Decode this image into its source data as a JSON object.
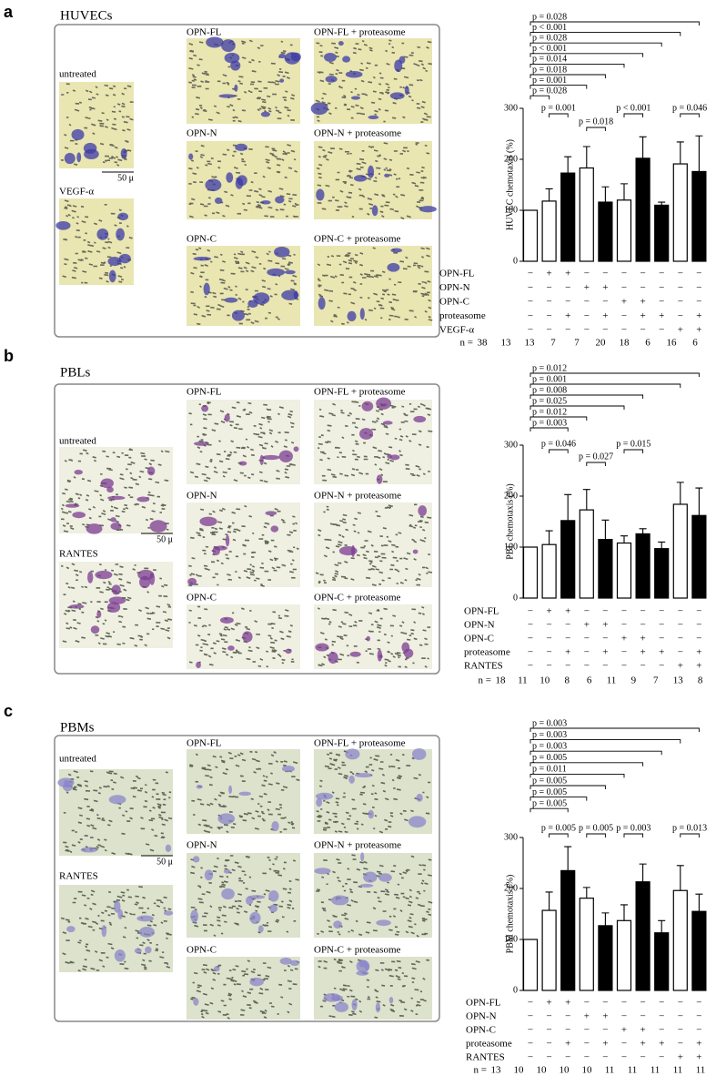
{
  "panels": [
    {
      "letter": "a",
      "title": "HUVECs",
      "scale_bar": "50 μ",
      "image_labels": [
        "untreated",
        "VEGF-α",
        "OPN-FL",
        "OPN-N",
        "OPN-C",
        "OPN-FL + proteasome",
        "OPN-N + proteasome",
        "OPN-C + proteasome"
      ]
    },
    {
      "letter": "b",
      "title": "PBLs",
      "scale_bar": "50 μ",
      "image_labels": [
        "untreated",
        "RANTES",
        "OPN-FL",
        "OPN-N",
        "OPN-C",
        "OPN-FL + proteasome",
        "OPN-N + proteasome",
        "OPN-C + proteasome"
      ]
    },
    {
      "letter": "c",
      "title": "PBMs",
      "scale_bar": "50 μ",
      "image_labels": [
        "untreated",
        "RANTES",
        "OPN-FL",
        "OPN-N",
        "OPN-C",
        "OPN-FL + proteasome",
        "OPN-N + proteasome",
        "OPN-C + proteasome"
      ]
    }
  ],
  "chart_data": [
    {
      "type": "bar",
      "ylabel": "HUVEC chemotaxis (%)",
      "ylim": [
        0,
        300
      ],
      "yticks": [
        0,
        100,
        200,
        300
      ],
      "values": [
        100,
        118,
        173,
        183,
        116,
        120,
        202,
        110,
        191,
        176
      ],
      "errors": [
        null,
        24,
        32,
        42,
        30,
        32,
        42,
        6,
        43,
        70
      ],
      "colors": [
        "#ffffff",
        "#ffffff",
        "#000000",
        "#ffffff",
        "#000000",
        "#ffffff",
        "#000000",
        "#000000",
        "#ffffff",
        "#000000"
      ],
      "brackets": [
        {
          "from": 0,
          "to": 9,
          "label": "p = 0.028"
        },
        {
          "from": 0,
          "to": 8,
          "label": "p < 0.001"
        },
        {
          "from": 0,
          "to": 7,
          "label": "p = 0.028"
        },
        {
          "from": 0,
          "to": 6,
          "label": "p < 0.001"
        },
        {
          "from": 0,
          "to": 5,
          "label": "p = 0.014"
        },
        {
          "from": 0,
          "to": 4,
          "label": "p = 0.018"
        },
        {
          "from": 0,
          "to": 3,
          "label": "p = 0.001"
        },
        {
          "from": 0,
          "to": 1,
          "label": "p = 0.028"
        }
      ],
      "pair_brackets": [
        {
          "from": 1,
          "to": 2,
          "label": "p = 0.001"
        },
        {
          "from": 3,
          "to": 4,
          "label": "p = 0.018"
        },
        {
          "from": 5,
          "to": 6,
          "label": "p < 0.001"
        },
        {
          "from": 8,
          "to": 9,
          "label": "p = 0.046"
        }
      ],
      "conditions": [
        {
          "name": "OPN-FL",
          "marks": [
            "−",
            "+",
            "+",
            "−",
            "−",
            "−",
            "−",
            "−",
            "−",
            "−"
          ]
        },
        {
          "name": "OPN-N",
          "marks": [
            "−",
            "−",
            "−",
            "+",
            "+",
            "−",
            "−",
            "−",
            "−",
            "−"
          ]
        },
        {
          "name": "OPN-C",
          "marks": [
            "−",
            "−",
            "−",
            "−",
            "−",
            "+",
            "+",
            "−",
            "−",
            "−"
          ]
        },
        {
          "name": "proteasome",
          "marks": [
            "−",
            "−",
            "+",
            "−",
            "+",
            "−",
            "+",
            "+",
            "−",
            "+"
          ]
        },
        {
          "name": "VEGF-α",
          "marks": [
            "−",
            "−",
            "−",
            "−",
            "−",
            "−",
            "−",
            "−",
            "+",
            "+"
          ]
        }
      ],
      "n_label": "n =",
      "n": [
        38,
        13,
        13,
        7,
        7,
        20,
        18,
        6,
        16,
        6
      ]
    },
    {
      "type": "bar",
      "ylabel": "PBL chemotaxis (%)",
      "ylim": [
        0,
        300
      ],
      "yticks": [
        0,
        100,
        200,
        300
      ],
      "values": [
        100,
        105,
        152,
        173,
        115,
        108,
        126,
        97,
        184,
        162
      ],
      "errors": [
        null,
        27,
        51,
        40,
        38,
        14,
        10,
        13,
        43,
        54
      ],
      "colors": [
        "#ffffff",
        "#ffffff",
        "#000000",
        "#ffffff",
        "#000000",
        "#ffffff",
        "#000000",
        "#000000",
        "#ffffff",
        "#000000"
      ],
      "brackets": [
        {
          "from": 0,
          "to": 9,
          "label": "p = 0.012"
        },
        {
          "from": 0,
          "to": 8,
          "label": "p = 0.001"
        },
        {
          "from": 0,
          "to": 6,
          "label": "p = 0.008"
        },
        {
          "from": 0,
          "to": 5,
          "label": "p = 0.025"
        },
        {
          "from": 0,
          "to": 3,
          "label": "p = 0.012"
        },
        {
          "from": 0,
          "to": 2,
          "label": "p = 0.003"
        }
      ],
      "pair_brackets": [
        {
          "from": 1,
          "to": 2,
          "label": "p = 0.046"
        },
        {
          "from": 3,
          "to": 4,
          "label": "p = 0.027"
        },
        {
          "from": 5,
          "to": 6,
          "label": "p = 0.015"
        }
      ],
      "conditions": [
        {
          "name": "OPN-FL",
          "marks": [
            "−",
            "+",
            "+",
            "−",
            "−",
            "−",
            "−",
            "−",
            "−",
            "−"
          ]
        },
        {
          "name": "OPN-N",
          "marks": [
            "−",
            "−",
            "−",
            "+",
            "+",
            "−",
            "−",
            "−",
            "−",
            "−"
          ]
        },
        {
          "name": "OPN-C",
          "marks": [
            "−",
            "−",
            "−",
            "−",
            "−",
            "+",
            "+",
            "−",
            "−",
            "−"
          ]
        },
        {
          "name": "proteasome",
          "marks": [
            "−",
            "−",
            "+",
            "−",
            "+",
            "−",
            "+",
            "+",
            "−",
            "+"
          ]
        },
        {
          "name": "RANTES",
          "marks": [
            "−",
            "−",
            "−",
            "−",
            "−",
            "−",
            "−",
            "−",
            "+",
            "+"
          ]
        }
      ],
      "n_label": "n =",
      "n": [
        18,
        11,
        10,
        8,
        6,
        11,
        9,
        7,
        13,
        8
      ]
    },
    {
      "type": "bar",
      "ylabel": "PBM chemotaxis (%)",
      "ylim": [
        0,
        300
      ],
      "yticks": [
        0,
        100,
        200,
        300
      ],
      "values": [
        100,
        157,
        235,
        181,
        127,
        137,
        213,
        113,
        196,
        155
      ],
      "errors": [
        null,
        36,
        47,
        21,
        25,
        31,
        35,
        24,
        49,
        34
      ],
      "colors": [
        "#ffffff",
        "#ffffff",
        "#000000",
        "#ffffff",
        "#000000",
        "#ffffff",
        "#000000",
        "#000000",
        "#ffffff",
        "#000000"
      ],
      "brackets": [
        {
          "from": 0,
          "to": 9,
          "label": "p = 0.003"
        },
        {
          "from": 0,
          "to": 8,
          "label": "p = 0.003"
        },
        {
          "from": 0,
          "to": 7,
          "label": "p = 0.003"
        },
        {
          "from": 0,
          "to": 6,
          "label": "p = 0.005"
        },
        {
          "from": 0,
          "to": 5,
          "label": "p = 0.011"
        },
        {
          "from": 0,
          "to": 4,
          "label": "p = 0.005"
        },
        {
          "from": 0,
          "to": 3,
          "label": "p = 0.005"
        },
        {
          "from": 0,
          "to": 2,
          "label": "p = 0.005"
        }
      ],
      "pair_brackets": [
        {
          "from": 1,
          "to": 2,
          "label": "p = 0.005"
        },
        {
          "from": 3,
          "to": 4,
          "label": "p = 0.005"
        },
        {
          "from": 5,
          "to": 6,
          "label": "p = 0.003"
        },
        {
          "from": 8,
          "to": 9,
          "label": "p = 0.013"
        }
      ],
      "conditions": [
        {
          "name": "OPN-FL",
          "marks": [
            "−",
            "+",
            "+",
            "−",
            "−",
            "−",
            "−",
            "−",
            "−",
            "−"
          ]
        },
        {
          "name": "OPN-N",
          "marks": [
            "−",
            "−",
            "−",
            "+",
            "+",
            "−",
            "−",
            "−",
            "−",
            "−"
          ]
        },
        {
          "name": "OPN-C",
          "marks": [
            "−",
            "−",
            "−",
            "−",
            "−",
            "+",
            "+",
            "−",
            "−",
            "−"
          ]
        },
        {
          "name": "proteasome",
          "marks": [
            "−",
            "−",
            "+",
            "−",
            "+",
            "−",
            "+",
            "+",
            "−",
            "+"
          ]
        },
        {
          "name": "RANTES",
          "marks": [
            "−",
            "−",
            "−",
            "−",
            "−",
            "−",
            "−",
            "−",
            "+",
            "+"
          ]
        }
      ],
      "n_label": "n =",
      "n": [
        13,
        10,
        10,
        10,
        10,
        11,
        11,
        11,
        11,
        11
      ]
    }
  ]
}
